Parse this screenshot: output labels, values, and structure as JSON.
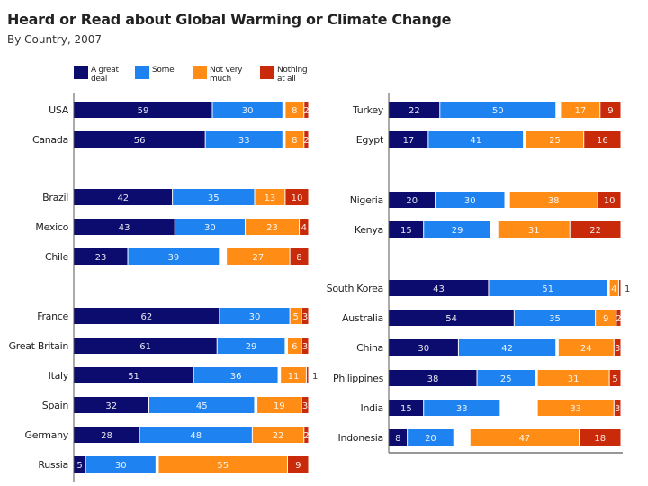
{
  "chart_data": {
    "type": "bar",
    "orientation": "horizontal",
    "stacked": true,
    "title": "Heard or Read about Global Warming or Climate Change",
    "subtitle": "By Country, 2007",
    "xlabel": "",
    "ylabel": "",
    "xlim": [
      0,
      100
    ],
    "grid": false,
    "legend_position": "top",
    "series": [
      {
        "name": "A great deal",
        "color": "#0c0c6e"
      },
      {
        "name": "Some",
        "color": "#1e82f0"
      },
      {
        "name": "Not very much",
        "color": "#ff8c14"
      },
      {
        "name": "Nothing at all",
        "color": "#c82a0a"
      }
    ],
    "legend_labels": [
      [
        "A great",
        "deal"
      ],
      [
        "Some",
        ""
      ],
      [
        "Not very",
        "much"
      ],
      [
        "Nothing",
        "at all"
      ]
    ],
    "panels": [
      {
        "name": "left",
        "rows": [
          {
            "country": "USA",
            "values": [
              59,
              30,
              8,
              2
            ]
          },
          {
            "country": "Canada",
            "values": [
              56,
              33,
              8,
              2
            ]
          },
          {
            "country": "Brazil",
            "values": [
              42,
              35,
              13,
              10
            ]
          },
          {
            "country": "Mexico",
            "values": [
              43,
              30,
              23,
              4
            ]
          },
          {
            "country": "Chile",
            "values": [
              23,
              39,
              27,
              8
            ]
          },
          {
            "country": "France",
            "values": [
              62,
              30,
              5,
              3
            ]
          },
          {
            "country": "Great Britain",
            "values": [
              61,
              29,
              6,
              3
            ]
          },
          {
            "country": "Italy",
            "values": [
              51,
              36,
              11,
              1
            ]
          },
          {
            "country": "Spain",
            "values": [
              32,
              45,
              19,
              3
            ]
          },
          {
            "country": "Germany",
            "values": [
              28,
              48,
              22,
              2
            ]
          },
          {
            "country": "Russia",
            "values": [
              5,
              30,
              55,
              9
            ]
          }
        ]
      },
      {
        "name": "right",
        "rows": [
          {
            "country": "Turkey",
            "values": [
              22,
              50,
              17,
              9
            ]
          },
          {
            "country": "Egypt",
            "values": [
              17,
              41,
              25,
              16
            ]
          },
          {
            "country": "Nigeria",
            "values": [
              20,
              30,
              38,
              10
            ]
          },
          {
            "country": "Kenya",
            "values": [
              15,
              29,
              31,
              22
            ]
          },
          {
            "country": "South Korea",
            "values": [
              43,
              51,
              4,
              1
            ]
          },
          {
            "country": "Australia",
            "values": [
              54,
              35,
              9,
              2
            ]
          },
          {
            "country": "China",
            "values": [
              30,
              42,
              24,
              3
            ]
          },
          {
            "country": "Philippines",
            "values": [
              38,
              25,
              31,
              5
            ]
          },
          {
            "country": "India",
            "values": [
              15,
              33,
              33,
              3
            ]
          },
          {
            "country": "Indonesia",
            "values": [
              8,
              20,
              47,
              18
            ]
          }
        ]
      }
    ]
  }
}
